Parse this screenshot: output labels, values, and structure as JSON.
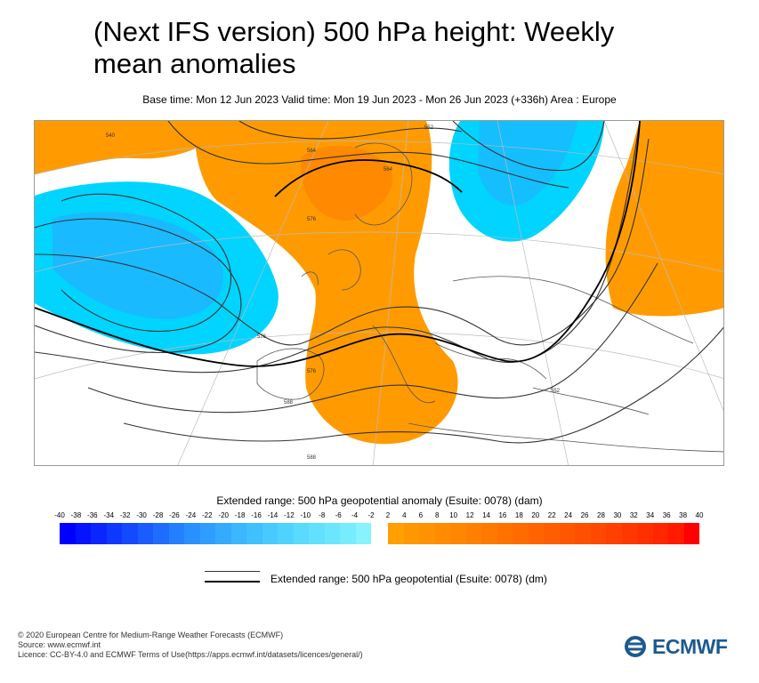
{
  "header": {
    "title": "(Next IFS version) 500 hPa height: Weekly mean anomalies",
    "subtitle": "Base time: Mon 12 Jun 2023 Valid time: Mon 19 Jun 2023 - Mon 26 Jun 2023 (+336h) Area : Europe"
  },
  "map": {
    "contour_labels": [
      "552",
      "564",
      "576",
      "576",
      "564",
      "576",
      "588",
      "588",
      "540",
      "552"
    ]
  },
  "legend": {
    "title": "Extended range: 500 hPa geopotential anomaly (Esuite: 0078) (dam)",
    "negative_ticks": [
      "-40",
      "-38",
      "-36",
      "-34",
      "-32",
      "-30",
      "-28",
      "-26",
      "-24",
      "-22",
      "-20",
      "-18",
      "-16",
      "-14",
      "-12",
      "-10",
      "-8",
      "-6",
      "-4",
      "-2"
    ],
    "positive_ticks": [
      "2",
      "4",
      "6",
      "8",
      "10",
      "12",
      "14",
      "16",
      "18",
      "20",
      "22",
      "24",
      "26",
      "28",
      "30",
      "32",
      "34",
      "36",
      "38",
      "40"
    ],
    "negative_colors": [
      "#0000ff",
      "#0513ff",
      "#0a26ff",
      "#0f38ff",
      "#144aff",
      "#1a5cff",
      "#1f6dff",
      "#2480ff",
      "#2a90ff",
      "#2f9dff",
      "#35aaff",
      "#3bb6ff",
      "#40c0ff",
      "#48caff",
      "#50d2ff",
      "#5adaff",
      "#62e0ff",
      "#6ce6ff",
      "#78ecff",
      "#88f2ff"
    ],
    "positive_colors": [
      "#ff9f00",
      "#ff9800",
      "#ff9200",
      "#ff8c00",
      "#ff8600",
      "#ff8000",
      "#ff7900",
      "#ff7200",
      "#ff6b00",
      "#ff6400",
      "#ff5d00",
      "#ff5600",
      "#ff4f00",
      "#ff4800",
      "#ff4000",
      "#ff3800",
      "#ff3000",
      "#ff2600",
      "#ff1a00",
      "#ff0000"
    ],
    "contour_label": "Extended range: 500 hPa geopotential (Esuite: 0078) (dm)"
  },
  "footer": {
    "line1": "© 2020 European Centre for Medium-Range Weather Forecasts (ECMWF)",
    "line2": "Source: www.ecmwf.int",
    "line3": "Licence: CC-BY-4.0 and ECMWF Terms of Use(https://apps.ecmwf.int/datasets/licences/general/)",
    "logo_text": "ECMWF"
  },
  "colors": {
    "positive_anomaly": "#ff9b00",
    "positive_strong": "#ff8400",
    "negative_anomaly": "#00d4ff",
    "negative_strong": "#22aaff"
  }
}
